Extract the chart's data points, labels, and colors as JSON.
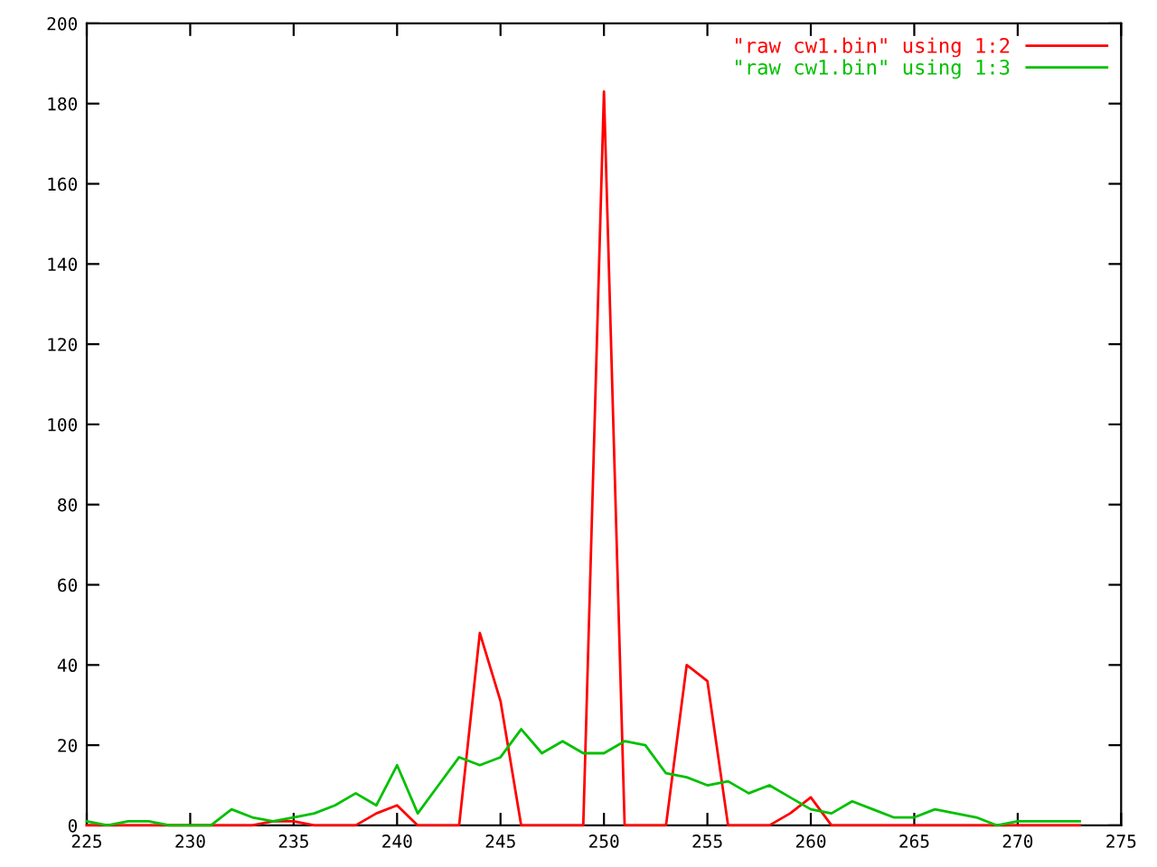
{
  "chart_data": {
    "type": "line",
    "x": [
      225,
      226,
      227,
      228,
      229,
      230,
      231,
      232,
      233,
      234,
      235,
      236,
      237,
      238,
      239,
      240,
      241,
      242,
      243,
      244,
      245,
      246,
      247,
      248,
      249,
      250,
      251,
      252,
      253,
      254,
      255,
      256,
      257,
      258,
      259,
      260,
      261,
      262,
      263,
      264,
      265,
      266,
      267,
      268,
      269,
      270,
      271,
      272,
      273
    ],
    "series": [
      {
        "name": "\"raw cw1.bin\" using 1:2",
        "color": "#ff0000",
        "values": [
          0,
          0,
          0,
          0,
          0,
          0,
          0,
          0,
          0,
          1,
          1,
          0,
          0,
          0,
          3,
          5,
          0,
          0,
          0,
          48,
          31,
          0,
          0,
          0,
          0,
          183,
          0,
          0,
          0,
          40,
          36,
          0,
          0,
          0,
          3,
          7,
          0,
          0,
          0,
          0,
          0,
          0,
          0,
          0,
          0,
          0,
          0,
          0,
          0
        ]
      },
      {
        "name": "\"raw cw1.bin\" using 1:3",
        "color": "#00c000",
        "values": [
          1,
          0,
          1,
          1,
          0,
          0,
          0,
          4,
          2,
          1,
          2,
          3,
          5,
          8,
          5,
          15,
          3,
          10,
          17,
          15,
          17,
          24,
          18,
          21,
          18,
          18,
          21,
          20,
          13,
          12,
          10,
          11,
          8,
          10,
          7,
          4,
          3,
          6,
          4,
          2,
          2,
          4,
          3,
          2,
          0,
          1,
          1,
          1,
          1
        ]
      }
    ],
    "xlim": [
      225,
      275
    ],
    "xticks": [
      225,
      230,
      235,
      240,
      245,
      250,
      255,
      260,
      265,
      270,
      275
    ],
    "ylim": [
      0,
      200
    ],
    "yticks": [
      0,
      20,
      40,
      60,
      80,
      100,
      120,
      140,
      160,
      180,
      200
    ],
    "grid": false,
    "legend": "top right",
    "marker": "none",
    "line_style": "solid"
  }
}
